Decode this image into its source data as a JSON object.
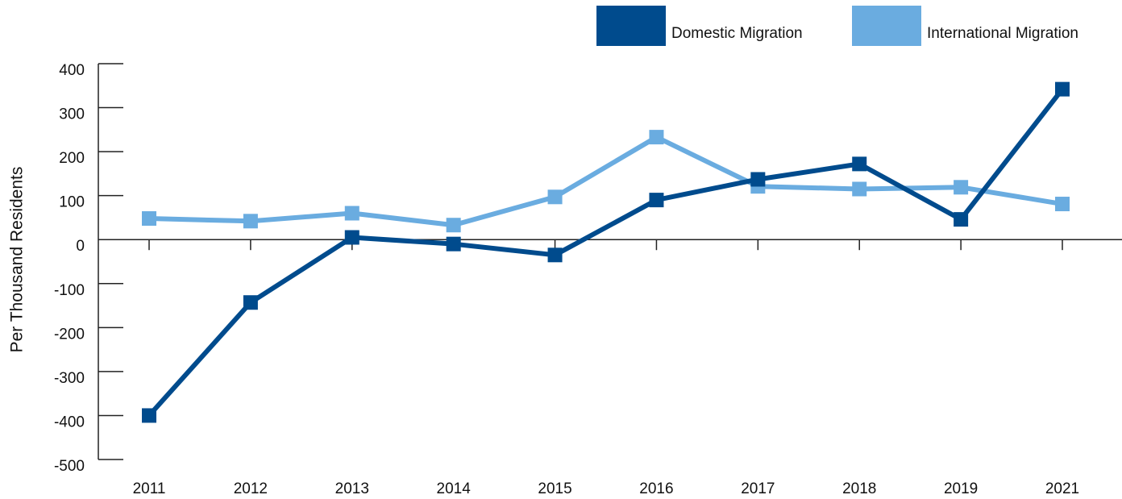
{
  "chart_data": {
    "type": "line",
    "y_label": "Per Thousand Residents",
    "categories": [
      "2011",
      "2012",
      "2013",
      "2014",
      "2015",
      "2016",
      "2017",
      "2018",
      "2019",
      "2021"
    ],
    "series": [
      {
        "name": "Domestic Migration",
        "color": "#004b8d",
        "values": [
          -400,
          -143,
          5,
          -10,
          -35,
          90,
          137,
          172,
          46,
          342
        ]
      },
      {
        "name": "International Migration",
        "color": "#6aace0",
        "values": [
          48,
          42,
          60,
          33,
          97,
          233,
          121,
          115,
          119,
          81
        ]
      }
    ],
    "ylim": [
      -500,
      400
    ],
    "yticks": [
      -500,
      -400,
      -300,
      -200,
      -100,
      0,
      100,
      200,
      300,
      400
    ],
    "legend": "top-right"
  }
}
